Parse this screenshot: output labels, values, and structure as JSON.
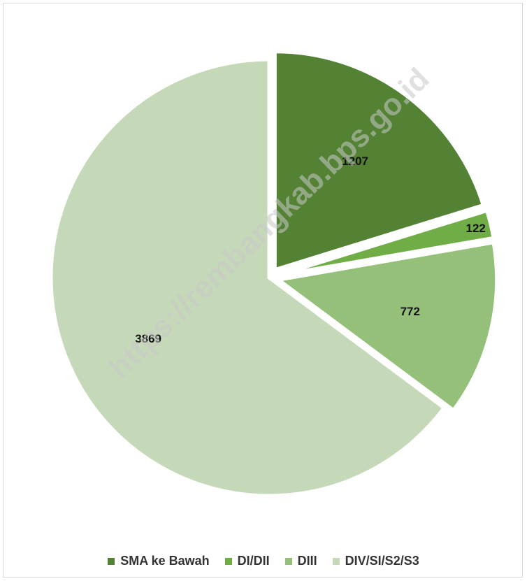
{
  "chart_data": {
    "type": "pie",
    "slices": [
      {
        "label": "SMA ke Bawah",
        "value": 1207,
        "color": "#548235",
        "exploded": true
      },
      {
        "label": "DI/DII",
        "value": 122,
        "color": "#70ad47",
        "exploded": true
      },
      {
        "label": "DIII",
        "value": 772,
        "color": "#95c07a",
        "exploded": true
      },
      {
        "label": "DIV/SI/S2/S3",
        "value": 3869,
        "color": "#c5d9b8",
        "exploded": false
      }
    ],
    "start_angle": "12 o'clock",
    "direction": "clockwise",
    "legend_position": "bottom",
    "data_labels": true
  },
  "watermark": "https://rembangkab.bps.go.id"
}
